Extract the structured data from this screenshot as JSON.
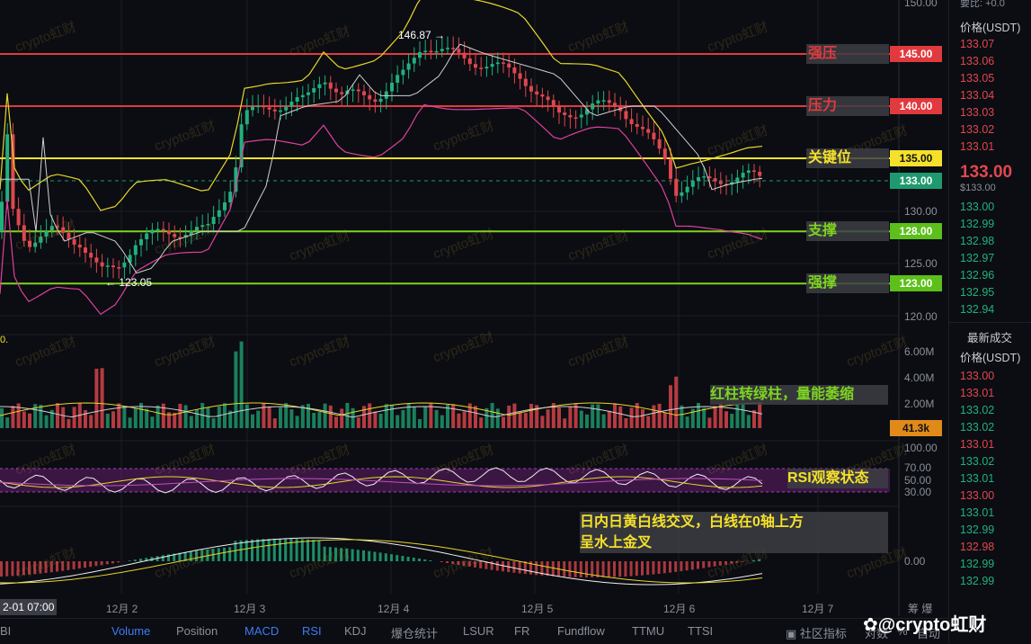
{
  "price_axis": [
    "150.00",
    "145.00",
    "140.00",
    "135.00",
    "130.00",
    "125.00",
    "120.00"
  ],
  "volume_axis": [
    "6.00M",
    "4.00M",
    "2.00M"
  ],
  "rsi_axis": [
    "100.00",
    "70.00",
    "50.00",
    "30.00"
  ],
  "macd_axis": [
    "0.00"
  ],
  "x_axis": [
    "12月 2",
    "12月 3",
    "12月 4",
    "12月 5",
    "12月 6",
    "12月 7"
  ],
  "x_cursor": "2-01 07:00",
  "x_right": "筹 爆",
  "annotations": {
    "high": "146.87",
    "low": "123.05",
    "top_left": "0."
  },
  "levels": [
    {
      "label": "强压",
      "price_tag": "145.00",
      "price": 145,
      "color": "#e03a3e",
      "text_color": "#e03a3e"
    },
    {
      "label": "压力",
      "price_tag": "140.00",
      "price": 140,
      "color": "#e03a3e",
      "text_color": "#e03a3e"
    },
    {
      "label": "关键位",
      "price_tag": "135.00",
      "price": 135,
      "color": "#f5e12a",
      "text_color": "#f5e12a"
    },
    {
      "label": "支撑",
      "price_tag": "128.00",
      "price": 128,
      "color": "#7ed321",
      "text_color": "#7ed321"
    },
    {
      "label": "强撑",
      "price_tag": "123.00",
      "price": 123,
      "color": "#7ed321",
      "text_color": "#7ed321"
    }
  ],
  "current_price_tag": "133.00",
  "volume_tag": "41.3k",
  "notes": {
    "volume": "红柱转绿柱，量能萎缩",
    "rsi": "RSI观察状态",
    "macd_line1": "日内日黄白线交叉，白线在0轴上方",
    "macd_line2": "呈水上金叉"
  },
  "watermark": "crypto虹财",
  "orderbook": {
    "top_partial": "要比: +0.0",
    "price_header": "价格(USDT)",
    "asks": [
      "133.07",
      "133.06",
      "133.05",
      "133.04",
      "133.03",
      "133.02",
      "133.01"
    ],
    "last_price": "133.00",
    "last_price_usd": "$133.00",
    "bids": [
      "133.00",
      "132.99",
      "132.98",
      "132.97",
      "132.96",
      "132.95",
      "132.94"
    ],
    "trades_title": "最新成交",
    "trades_header": "价格(USDT)",
    "trades": [
      {
        "p": "133.00",
        "side": "red"
      },
      {
        "p": "133.01",
        "side": "red"
      },
      {
        "p": "133.02",
        "side": "green"
      },
      {
        "p": "133.02",
        "side": "green"
      },
      {
        "p": "133.01",
        "side": "red"
      },
      {
        "p": "133.02",
        "side": "green"
      },
      {
        "p": "133.01",
        "side": "green"
      },
      {
        "p": "133.00",
        "side": "red"
      },
      {
        "p": "133.01",
        "side": "green"
      },
      {
        "p": "132.99",
        "side": "green"
      },
      {
        "p": "132.98",
        "side": "red"
      },
      {
        "p": "132.99",
        "side": "green"
      },
      {
        "p": "132.99",
        "side": "green"
      }
    ]
  },
  "bottom_tabs": [
    {
      "label": "BI",
      "active": false
    },
    {
      "label": "Volume",
      "active": true
    },
    {
      "label": "Position",
      "active": false
    },
    {
      "label": "MACD",
      "active": true
    },
    {
      "label": "RSI",
      "active": true
    },
    {
      "label": "KDJ",
      "active": false
    },
    {
      "label": "爆仓统计",
      "active": false
    },
    {
      "label": "LSUR",
      "active": false
    },
    {
      "label": "FR",
      "active": false
    },
    {
      "label": "Fundflow",
      "active": false
    },
    {
      "label": "TTMU",
      "active": false
    },
    {
      "label": "TTSI",
      "active": false
    }
  ],
  "bottom_right": {
    "community": "社区指标",
    "dui": "对数",
    "pct": "%",
    "auto": "自动"
  },
  "brand": "@crypto虹财",
  "colors": {
    "up": "#22b07d",
    "down": "#e0474e",
    "accent": "#3d7bf5"
  }
}
